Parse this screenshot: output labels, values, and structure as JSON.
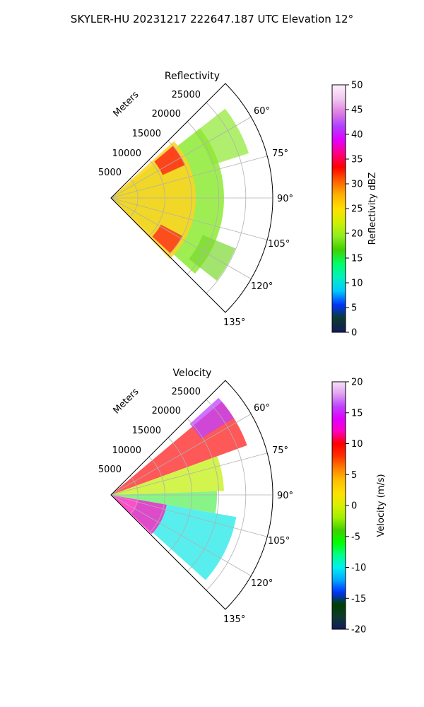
{
  "figure": {
    "title": "SKYLER-HU  20231217  222647.187 UTC Elevation 12°"
  },
  "chart_data": [
    {
      "type": "polar-sector",
      "title": "Reflectivity",
      "radial_label": "Meters",
      "radial_ticks": [
        "5000",
        "10000",
        "15000",
        "20000",
        "25000"
      ],
      "radial_max": 30000,
      "angle_ticks": [
        "60°",
        "75°",
        "90°",
        "105°",
        "120°",
        "135°"
      ],
      "angle_range": [
        45,
        135
      ],
      "colorbar": {
        "label": "Reflectivity dBZ",
        "ticks": [
          "0",
          "5",
          "10",
          "15",
          "20",
          "25",
          "30",
          "35",
          "40",
          "45",
          "50"
        ],
        "range": [
          0,
          50
        ],
        "stops": [
          "#141a5e",
          "#0c3b2e",
          "#0033ff",
          "#00c8ff",
          "#00f0c0",
          "#00ff66",
          "#40d000",
          "#90ee20",
          "#d0f000",
          "#ffe000",
          "#ffb000",
          "#ff6000",
          "#ff0000",
          "#ff0080",
          "#e000ff",
          "#b040ff",
          "#e080e0",
          "#f0c8f0",
          "#fff0ff"
        ]
      }
    },
    {
      "type": "polar-sector",
      "title": "Velocity",
      "radial_label": "Meters",
      "radial_ticks": [
        "5000",
        "10000",
        "15000",
        "20000",
        "25000"
      ],
      "radial_max": 30000,
      "angle_ticks": [
        "60°",
        "75°",
        "90°",
        "105°",
        "120°",
        "135°"
      ],
      "angle_range": [
        45,
        135
      ],
      "colorbar": {
        "label": "Velocity (m/s)",
        "ticks": [
          "-20",
          "-15",
          "-10",
          "-5",
          "0",
          "5",
          "10",
          "15",
          "20"
        ],
        "range": [
          -20,
          20
        ],
        "stops": [
          "#141a5e",
          "#0c3b2e",
          "#003f00",
          "#0033ff",
          "#00aaff",
          "#00f0f0",
          "#00ff88",
          "#00ff00",
          "#40d000",
          "#a0f000",
          "#d8f000",
          "#ffe000",
          "#ffc000",
          "#ff8000",
          "#ff3000",
          "#ff0000",
          "#ff00c0",
          "#e000ff",
          "#c040ff",
          "#e0a0f0",
          "#f8e0f8"
        ]
      }
    }
  ]
}
